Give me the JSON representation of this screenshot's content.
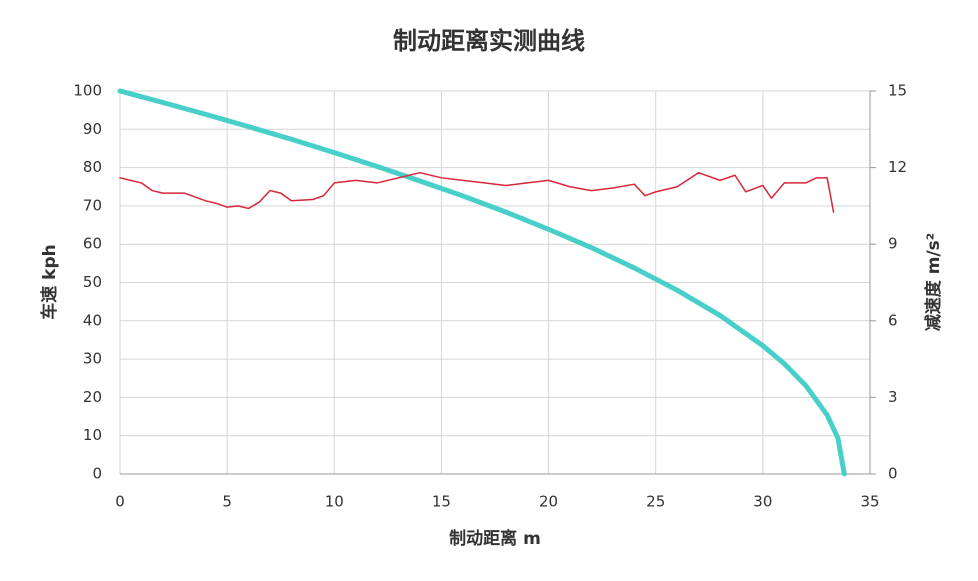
{
  "chart_data": {
    "type": "line",
    "title": "制动距离实测曲线",
    "x_label": "制动距离 m",
    "y_label": "车速 kph",
    "y2_label": "减速度 m/s²",
    "xlim": [
      0,
      35
    ],
    "xticks": [
      0,
      5,
      10,
      15,
      20,
      25,
      30,
      35
    ],
    "ylim": [
      0,
      100
    ],
    "yticks": [
      0,
      10,
      20,
      30,
      40,
      50,
      60,
      70,
      80,
      90,
      100
    ],
    "y2lim": [
      0,
      15
    ],
    "y2ticks": [
      0,
      3,
      6,
      9,
      12,
      15
    ],
    "grid": true,
    "series": [
      {
        "color": "#48cfc9",
        "width": 5,
        "x": [
          0,
          2,
          4,
          6,
          8,
          10,
          12,
          14,
          16,
          18,
          20,
          22,
          24,
          26,
          28,
          30,
          31,
          32,
          33,
          33.5,
          33.8
        ],
        "values": [
          100,
          97.0,
          93.9,
          90.7,
          87.4,
          83.9,
          80.3,
          76.5,
          72.6,
          68.4,
          63.9,
          59.1,
          53.8,
          48.0,
          41.4,
          33.5,
          28.8,
          23.1,
          15.4,
          9.4,
          0
        ]
      },
      {
        "color": "#d9263a",
        "width": 1.5,
        "axis": "y2",
        "x": [
          0,
          0.5,
          1,
          1.5,
          2,
          3,
          3.5,
          4,
          4.5,
          5,
          5.5,
          6,
          6.5,
          7,
          7.5,
          8,
          9,
          9.5,
          10,
          11,
          12,
          13,
          14,
          15,
          16,
          17,
          18,
          19,
          20,
          21,
          22,
          23,
          24,
          24.5,
          25,
          26,
          27,
          28,
          28.7,
          29.2,
          30,
          30.4,
          31,
          32,
          32.5,
          33,
          33.3
        ],
        "values": [
          11.6,
          11.5,
          11.4,
          11.1,
          11.0,
          11.0,
          10.85,
          10.7,
          10.6,
          10.45,
          10.5,
          10.4,
          10.65,
          11.1,
          11.0,
          10.7,
          10.75,
          10.9,
          11.4,
          11.5,
          11.4,
          11.6,
          11.8,
          11.6,
          11.5,
          11.4,
          11.3,
          11.4,
          11.5,
          11.25,
          11.1,
          11.2,
          11.35,
          10.9,
          11.05,
          11.25,
          11.8,
          11.5,
          11.7,
          11.05,
          11.3,
          10.8,
          11.4,
          11.4,
          11.6,
          11.6,
          10.25
        ]
      }
    ]
  }
}
